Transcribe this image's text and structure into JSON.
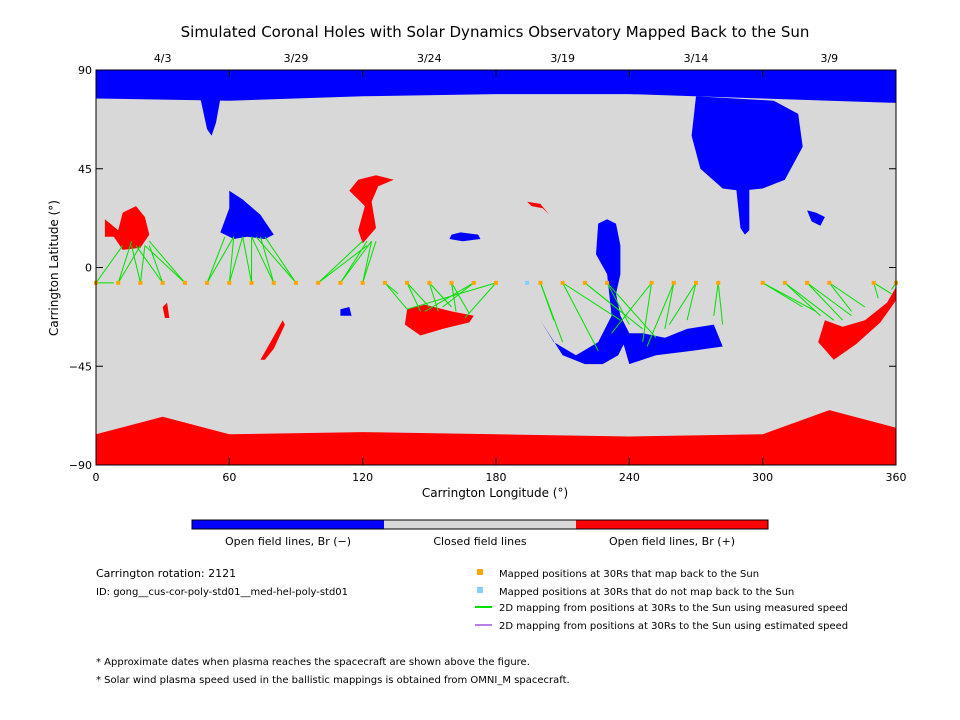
{
  "chart_data": {
    "type": "scatter",
    "title": "Simulated Coronal Holes with Solar Dynamics Observatory Mapped Back to the Sun",
    "xlabel": "Carrington Longitude (°)",
    "ylabel": "Carrington Latitude (°)",
    "xlim": [
      0,
      360
    ],
    "ylim": [
      -90,
      90
    ],
    "x_ticks": [
      "0",
      "60",
      "120",
      "180",
      "240",
      "300",
      "360"
    ],
    "y_ticks": [
      "90",
      "45",
      "0",
      "−45",
      "−90"
    ],
    "x_tick_values": [
      0,
      60,
      120,
      180,
      240,
      300,
      360
    ],
    "y_tick_values": [
      90,
      45,
      0,
      -45,
      -90
    ],
    "top_axis_dates": [
      {
        "label": "4/3",
        "lon": 30
      },
      {
        "label": "3/29",
        "lon": 90
      },
      {
        "label": "3/24",
        "lon": 150
      },
      {
        "label": "3/19",
        "lon": 210
      },
      {
        "label": "3/14",
        "lon": 270
      },
      {
        "label": "3/9",
        "lon": 330
      }
    ],
    "colors": {
      "open_negative": "#0000ff",
      "closed": "#d8d8d8",
      "open_positive": "#ff0000",
      "mapped_point": "#ffa500",
      "unmapped_point": "#87cefa",
      "measured_line": "#00e000",
      "estimated_line": "#b87fe8"
    },
    "colorbar": [
      "Open field lines, Br (−)",
      "Closed field lines",
      "Open field lines, Br (+)"
    ],
    "regions": [
      {
        "polarity": "neg",
        "points": [
          [
            0,
            77
          ],
          [
            60,
            76
          ],
          [
            120,
            78
          ],
          [
            180,
            79
          ],
          [
            240,
            79
          ],
          [
            300,
            77
          ],
          [
            360,
            75
          ],
          [
            360,
            90
          ],
          [
            0,
            90
          ]
        ]
      },
      {
        "polarity": "neg",
        "points": [
          [
            47,
            77
          ],
          [
            50,
            63
          ],
          [
            52,
            60
          ],
          [
            54,
            66
          ],
          [
            56,
            77
          ]
        ]
      },
      {
        "polarity": "neg",
        "points": [
          [
            270,
            78
          ],
          [
            268,
            60
          ],
          [
            272,
            45
          ],
          [
            282,
            36
          ],
          [
            290,
            35
          ],
          [
            300,
            36
          ],
          [
            310,
            40
          ],
          [
            318,
            55
          ],
          [
            316,
            70
          ],
          [
            305,
            76
          ]
        ]
      },
      {
        "polarity": "neg",
        "points": [
          [
            288,
            37
          ],
          [
            290,
            18
          ],
          [
            292,
            15
          ],
          [
            294,
            17
          ],
          [
            294,
            36
          ]
        ]
      },
      {
        "polarity": "neg",
        "points": [
          [
            60,
            35
          ],
          [
            66,
            31
          ],
          [
            74,
            24
          ],
          [
            80,
            15
          ],
          [
            76,
            13
          ],
          [
            68,
            14
          ],
          [
            62,
            13
          ],
          [
            56,
            16
          ],
          [
            60,
            27
          ]
        ]
      },
      {
        "polarity": "neg",
        "points": [
          [
            320,
            26
          ],
          [
            322,
            21
          ],
          [
            326,
            19
          ],
          [
            328,
            23
          ],
          [
            324,
            25
          ]
        ]
      },
      {
        "polarity": "neg",
        "points": [
          [
            160,
            15
          ],
          [
            164,
            16
          ],
          [
            172,
            15
          ],
          [
            173,
            13
          ],
          [
            165,
            12
          ],
          [
            159,
            13
          ]
        ]
      },
      {
        "polarity": "neg",
        "points": [
          [
            200,
            -24
          ],
          [
            210,
            -40
          ],
          [
            220,
            -44
          ],
          [
            228,
            -44
          ],
          [
            235,
            -40
          ],
          [
            240,
            -30
          ],
          [
            236,
            -22
          ],
          [
            234,
            -12
          ],
          [
            236,
            -3
          ],
          [
            236,
            10
          ],
          [
            234,
            20
          ],
          [
            230,
            22
          ],
          [
            226,
            20
          ],
          [
            225,
            6
          ],
          [
            230,
            -3
          ],
          [
            232,
            -22
          ],
          [
            226,
            -34
          ],
          [
            216,
            -40
          ],
          [
            206,
            -34
          ]
        ]
      },
      {
        "polarity": "neg",
        "points": [
          [
            236,
            -30
          ],
          [
            240,
            -44
          ],
          [
            252,
            -40
          ],
          [
            268,
            -38
          ],
          [
            282,
            -36
          ],
          [
            278,
            -26
          ],
          [
            266,
            -28
          ],
          [
            256,
            -32
          ],
          [
            246,
            -30
          ]
        ]
      },
      {
        "polarity": "neg",
        "points": [
          [
            110,
            -19
          ],
          [
            114,
            -18
          ],
          [
            115,
            -22
          ],
          [
            110,
            -22
          ]
        ]
      },
      {
        "polarity": "pos",
        "points": [
          [
            0,
            -76
          ],
          [
            30,
            -68
          ],
          [
            60,
            -76
          ],
          [
            120,
            -75
          ],
          [
            180,
            -76
          ],
          [
            240,
            -77
          ],
          [
            300,
            -76
          ],
          [
            330,
            -65
          ],
          [
            360,
            -73
          ],
          [
            360,
            -90
          ],
          [
            0,
            -90
          ]
        ]
      },
      {
        "polarity": "pos",
        "points": [
          [
            4,
            22
          ],
          [
            10,
            17
          ],
          [
            12,
            25
          ],
          [
            18,
            28
          ],
          [
            22,
            23
          ],
          [
            24,
            15
          ],
          [
            20,
            9
          ],
          [
            12,
            8
          ],
          [
            8,
            14
          ],
          [
            4,
            14
          ]
        ]
      },
      {
        "polarity": "pos",
        "points": [
          [
            114,
            35
          ],
          [
            118,
            40
          ],
          [
            126,
            42
          ],
          [
            134,
            40
          ],
          [
            127,
            37
          ],
          [
            124,
            30
          ],
          [
            126,
            18
          ],
          [
            120,
            11
          ],
          [
            118,
            17
          ],
          [
            121,
            28
          ],
          [
            117,
            32
          ]
        ]
      },
      {
        "polarity": "pos",
        "points": [
          [
            139,
            -26
          ],
          [
            146,
            -31
          ],
          [
            156,
            -28
          ],
          [
            168,
            -25
          ],
          [
            170,
            -22
          ],
          [
            160,
            -20
          ],
          [
            148,
            -17
          ],
          [
            140,
            -19
          ]
        ]
      },
      {
        "polarity": "pos",
        "points": [
          [
            328,
            -24
          ],
          [
            336,
            -27
          ],
          [
            346,
            -24
          ],
          [
            356,
            -16
          ],
          [
            360,
            -9
          ],
          [
            360,
            -15
          ],
          [
            353,
            -25
          ],
          [
            342,
            -35
          ],
          [
            332,
            -42
          ],
          [
            325,
            -34
          ]
        ]
      },
      {
        "polarity": "pos",
        "points": [
          [
            74,
            -42
          ],
          [
            78,
            -35
          ],
          [
            84,
            -24
          ],
          [
            85,
            -26
          ],
          [
            80,
            -37
          ],
          [
            76,
            -42
          ]
        ]
      },
      {
        "polarity": "pos",
        "points": [
          [
            194,
            30
          ],
          [
            200,
            29
          ],
          [
            204,
            24
          ],
          [
            201,
            27
          ],
          [
            196,
            28
          ]
        ]
      },
      {
        "polarity": "pos",
        "points": [
          [
            30,
            -18
          ],
          [
            32,
            -16
          ],
          [
            33,
            -23
          ],
          [
            31,
            -23
          ]
        ]
      }
    ],
    "mapped_points": [
      {
        "lon": 0,
        "lat": -7,
        "footpoints": [
          [
            8,
            -7
          ],
          [
            12,
            10
          ]
        ]
      },
      {
        "lon": 10,
        "lat": -7,
        "footpoints": [
          [
            16,
            12
          ],
          [
            20,
            10
          ]
        ]
      },
      {
        "lon": 20,
        "lat": -7,
        "footpoints": [
          [
            16,
            10
          ],
          [
            22,
            10
          ]
        ]
      },
      {
        "lon": 30,
        "lat": -7,
        "footpoints": [
          [
            18,
            10
          ],
          [
            24,
            10
          ]
        ]
      },
      {
        "lon": 40,
        "lat": -7,
        "footpoints": [
          [
            22,
            10
          ],
          [
            24,
            12
          ]
        ]
      },
      {
        "lon": 50,
        "lat": -7,
        "footpoints": [
          [
            58,
            14
          ],
          [
            62,
            14
          ]
        ]
      },
      {
        "lon": 60,
        "lat": -7,
        "footpoints": [
          [
            62,
            14
          ],
          [
            66,
            14
          ]
        ]
      },
      {
        "lon": 70,
        "lat": -7,
        "footpoints": [
          [
            66,
            14
          ],
          [
            70,
            14
          ]
        ]
      },
      {
        "lon": 80,
        "lat": -7,
        "footpoints": [
          [
            70,
            14
          ],
          [
            74,
            14
          ]
        ]
      },
      {
        "lon": 90,
        "lat": -7,
        "footpoints": [
          [
            72,
            14
          ],
          [
            76,
            14
          ]
        ]
      },
      {
        "lon": 100,
        "lat": -7,
        "footpoints": [
          [
            120,
            12
          ],
          [
            122,
            10
          ]
        ]
      },
      {
        "lon": 110,
        "lat": -7,
        "footpoints": [
          [
            122,
            12
          ],
          [
            124,
            12
          ]
        ]
      },
      {
        "lon": 120,
        "lat": -7,
        "footpoints": [
          [
            124,
            12
          ],
          [
            126,
            12
          ]
        ]
      },
      {
        "lon": 130,
        "lat": -7,
        "footpoints": [
          [
            136,
            -12
          ],
          [
            140,
            -19
          ]
        ]
      },
      {
        "lon": 140,
        "lat": -7,
        "footpoints": [
          [
            146,
            -20
          ],
          [
            150,
            -18
          ]
        ]
      },
      {
        "lon": 150,
        "lat": -7,
        "footpoints": [
          [
            154,
            -20
          ],
          [
            160,
            -18
          ]
        ]
      },
      {
        "lon": 160,
        "lat": -7,
        "footpoints": [
          [
            162,
            -20
          ],
          [
            168,
            -21
          ]
        ]
      },
      {
        "lon": 170,
        "lat": -7,
        "footpoints": [
          [
            148,
            -20
          ],
          [
            156,
            -18
          ]
        ]
      },
      {
        "lon": 180,
        "lat": -7,
        "footpoints": [
          [
            140,
            -19
          ],
          [
            166,
            -23
          ]
        ]
      },
      {
        "lon": 200,
        "lat": -7,
        "footpoints": [
          [
            206,
            -24
          ],
          [
            210,
            -34
          ]
        ]
      },
      {
        "lon": 210,
        "lat": -7,
        "footpoints": [
          [
            226,
            -38
          ],
          [
            236,
            -24
          ]
        ]
      },
      {
        "lon": 220,
        "lat": -7,
        "footpoints": [
          [
            236,
            -20
          ],
          [
            246,
            -28
          ]
        ]
      },
      {
        "lon": 230,
        "lat": -7,
        "footpoints": [
          [
            240,
            -26
          ],
          [
            252,
            -32
          ]
        ]
      },
      {
        "lon": 250,
        "lat": -7,
        "footpoints": [
          [
            232,
            -30
          ],
          [
            246,
            -34
          ]
        ]
      },
      {
        "lon": 260,
        "lat": -7,
        "footpoints": [
          [
            248,
            -36
          ],
          [
            256,
            -28
          ]
        ]
      },
      {
        "lon": 270,
        "lat": -7,
        "footpoints": [
          [
            258,
            -26
          ],
          [
            266,
            -24
          ]
        ]
      },
      {
        "lon": 280,
        "lat": -7,
        "footpoints": [
          [
            278,
            -22
          ],
          [
            282,
            -26
          ]
        ]
      },
      {
        "lon": 300,
        "lat": -7,
        "footpoints": [
          [
            318,
            -18
          ],
          [
            324,
            -20
          ]
        ]
      },
      {
        "lon": 310,
        "lat": -7,
        "footpoints": [
          [
            326,
            -22
          ],
          [
            332,
            -24
          ]
        ]
      },
      {
        "lon": 320,
        "lat": -7,
        "footpoints": [
          [
            336,
            -24
          ],
          [
            340,
            -22
          ]
        ]
      },
      {
        "lon": 330,
        "lat": -7,
        "footpoints": [
          [
            340,
            -20
          ],
          [
            346,
            -18
          ]
        ]
      },
      {
        "lon": 350,
        "lat": -7,
        "footpoints": [
          [
            352,
            -14
          ],
          [
            358,
            -12
          ]
        ]
      },
      {
        "lon": 360,
        "lat": -7,
        "footpoints": [
          [
            358,
            -10
          ]
        ]
      }
    ],
    "unmapped_points": [
      {
        "lon": 194,
        "lat": -7
      }
    ]
  },
  "colorbar_labels": [
    "Open field lines, Br (−)",
    "Closed field lines",
    "Open field lines, Br (+)"
  ],
  "info": {
    "rotation": "Carrington rotation: 2121",
    "id": "ID: gong__cus-cor-poly-std01__med-hel-poly-std01"
  },
  "legend": [
    {
      "label": "Mapped positions at 30Rs that map back to the Sun",
      "kind": "square",
      "color": "#ffa500"
    },
    {
      "label": "Mapped positions at 30Rs that do not map back to the Sun",
      "kind": "square",
      "color": "#87cefa"
    },
    {
      "label": "2D mapping from positions at 30Rs to the Sun using measured speed",
      "kind": "line",
      "color": "#00e000"
    },
    {
      "label": "2D mapping from positions at 30Rs to the Sun using estimated speed",
      "kind": "line",
      "color": "#b87fe8"
    }
  ],
  "notes": [
    "* Approximate dates when plasma reaches the spacecraft are shown above the figure.",
    "* Solar wind plasma speed used in the ballistic mappings is obtained from OMNI_M spacecraft."
  ]
}
